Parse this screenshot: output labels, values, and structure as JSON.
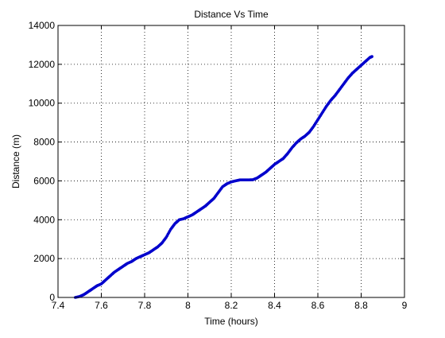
{
  "chart_data": {
    "type": "scatter",
    "title": "Distance Vs Time",
    "xlabel": "Time (hours)",
    "ylabel": "Distance (m)",
    "xlim": [
      7.4,
      9
    ],
    "ylim": [
      0,
      14000
    ],
    "xticks": [
      7.4,
      7.6,
      7.8,
      8,
      8.2,
      8.4,
      8.6,
      8.8,
      9
    ],
    "yticks": [
      0,
      2000,
      4000,
      6000,
      8000,
      10000,
      12000,
      14000
    ],
    "xtick_labels": [
      "7.4",
      "7.6",
      "7.8",
      "8",
      "8.2",
      "8.4",
      "8.6",
      "8.8",
      "9"
    ],
    "ytick_labels": [
      "0",
      "2000",
      "4000",
      "6000",
      "8000",
      "10000",
      "12000",
      "14000"
    ],
    "grid": true,
    "grid_style": "dotted",
    "marker": "dot",
    "series": [
      {
        "color": "#0000cc",
        "x": [
          7.48,
          7.5,
          7.52,
          7.54,
          7.56,
          7.58,
          7.6,
          7.62,
          7.64,
          7.66,
          7.68,
          7.7,
          7.72,
          7.74,
          7.76,
          7.78,
          7.8,
          7.82,
          7.84,
          7.86,
          7.88,
          7.9,
          7.92,
          7.94,
          7.96,
          7.98,
          8.0,
          8.02,
          8.04,
          8.06,
          8.08,
          8.1,
          8.12,
          8.14,
          8.16,
          8.18,
          8.2,
          8.22,
          8.24,
          8.26,
          8.28,
          8.3,
          8.32,
          8.34,
          8.36,
          8.38,
          8.4,
          8.42,
          8.44,
          8.46,
          8.48,
          8.5,
          8.52,
          8.54,
          8.56,
          8.58,
          8.6,
          8.62,
          8.64,
          8.66,
          8.68,
          8.7,
          8.72,
          8.74,
          8.76,
          8.78,
          8.8,
          8.82,
          8.84,
          8.85
        ],
        "y": [
          0,
          50,
          150,
          300,
          450,
          600,
          700,
          900,
          1100,
          1300,
          1450,
          1600,
          1750,
          1850,
          2000,
          2100,
          2200,
          2300,
          2450,
          2600,
          2800,
          3100,
          3500,
          3800,
          4000,
          4050,
          4150,
          4250,
          4400,
          4550,
          4700,
          4900,
          5100,
          5400,
          5700,
          5850,
          5950,
          6000,
          6050,
          6050,
          6050,
          6060,
          6150,
          6300,
          6450,
          6650,
          6850,
          7000,
          7150,
          7400,
          7700,
          7950,
          8150,
          8300,
          8500,
          8800,
          9150,
          9500,
          9850,
          10150,
          10400,
          10700,
          11000,
          11300,
          11550,
          11750,
          11950,
          12150,
          12350,
          12400
        ]
      }
    ]
  }
}
